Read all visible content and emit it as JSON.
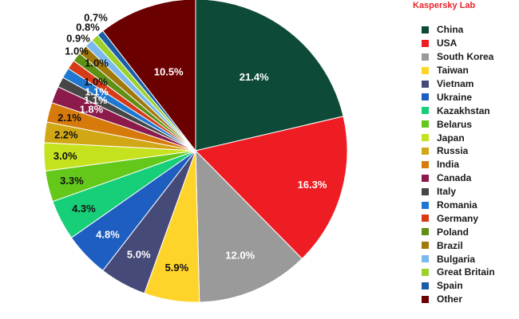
{
  "brand": {
    "text": "Kaspersky Lab",
    "color": "#e8242a"
  },
  "chart_data": {
    "type": "pie",
    "title": "",
    "start": "12 o'clock, clockwise",
    "legend_position": "right",
    "slices": [
      {
        "label": "China",
        "value": 21.4,
        "display": "21.4%",
        "color": "#0d4a38",
        "label_color": "#ffffff"
      },
      {
        "label": "USA",
        "value": 16.3,
        "display": "16.3%",
        "color": "#ee1d23",
        "label_color": "#ffffff"
      },
      {
        "label": "South Korea",
        "value": 12.0,
        "display": "12.0%",
        "color": "#9a9a9a",
        "label_color": "#ffffff"
      },
      {
        "label": "Taiwan",
        "value": 5.9,
        "display": "5.9%",
        "color": "#ffd42a",
        "label_color": "#111111"
      },
      {
        "label": "Vietnam",
        "value": 5.0,
        "display": "5.0%",
        "color": "#454a78",
        "label_color": "#ffffff"
      },
      {
        "label": "Ukraine",
        "value": 4.8,
        "display": "4.8%",
        "color": "#1e5ec1",
        "label_color": "#ffffff"
      },
      {
        "label": "Kazakhstan",
        "value": 4.3,
        "display": "4.3%",
        "color": "#17cf78",
        "label_color": "#111111"
      },
      {
        "label": "Belarus",
        "value": 3.3,
        "display": "3.3%",
        "color": "#64c81a",
        "label_color": "#111111"
      },
      {
        "label": "Japan",
        "value": 3.0,
        "display": "3.0%",
        "color": "#c6e21e",
        "label_color": "#111111"
      },
      {
        "label": "Russia",
        "value": 2.2,
        "display": "2.2%",
        "color": "#d1a716",
        "label_color": "#111111"
      },
      {
        "label": "India",
        "value": 2.1,
        "display": "2.1%",
        "color": "#d77a0c",
        "label_color": "#111111"
      },
      {
        "label": "Canada",
        "value": 1.8,
        "display": "1.8%",
        "color": "#8c1a4a",
        "label_color": "#ffffff"
      },
      {
        "label": "Italy",
        "value": 1.1,
        "display": "1.1%",
        "color": "#464646",
        "label_color": "#ffffff"
      },
      {
        "label": "Romania",
        "value": 1.1,
        "display": "1.1%",
        "color": "#1e78d2",
        "label_color": "#ffffff"
      },
      {
        "label": "Germany",
        "value": 1.0,
        "display": "1.0%",
        "color": "#d63a17",
        "label_color": "#111111"
      },
      {
        "label": "Poland",
        "value": 1.0,
        "display": "1.0%",
        "color": "#5f8f14",
        "label_color": "#111111"
      },
      {
        "label": "Brazil",
        "value": 1.0,
        "display": "1.0%",
        "color": "#a1780a",
        "label_color": "#111111"
      },
      {
        "label": "Bulgaria",
        "value": 0.9,
        "display": "0.9%",
        "color": "#7ab8ee",
        "label_color": "#111111"
      },
      {
        "label": "Great Britain",
        "value": 0.8,
        "display": "0.8%",
        "color": "#9cd12a",
        "label_color": "#111111"
      },
      {
        "label": "Spain",
        "value": 0.7,
        "display": "0.7%",
        "color": "#1c5ea6",
        "label_color": "#111111"
      },
      {
        "label": "Other",
        "value": 10.5,
        "display": "10.5%",
        "color": "#6b0000",
        "label_color": "#ffffff"
      }
    ]
  }
}
